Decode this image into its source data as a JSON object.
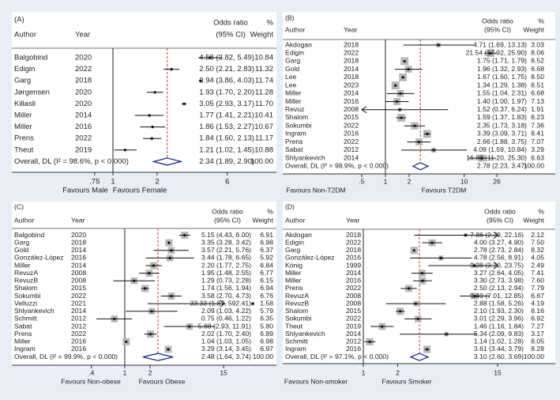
{
  "chart_data": [
    {
      "type": "forest",
      "panel_label": "(A)",
      "header": {
        "author": "Author",
        "year": "Year",
        "or_line1": "Odds ratio",
        "or_line2": "(95% CI)",
        "wt_line1": "%",
        "wt_line2": "Weight"
      },
      "xscale": "log",
      "xlim": [
        0.7,
        7.5
      ],
      "ticks": [
        {
          "v": 0.75,
          "label": ".75"
        },
        {
          "v": 1,
          "label": "1"
        },
        {
          "v": 2,
          "label": "2"
        },
        {
          "v": 6,
          "label": "6"
        }
      ],
      "favours_left": "Favours Male",
      "favours_right": "Favours Female",
      "studies": [
        {
          "author": "Balgobind",
          "year": "2020",
          "or": 4.58,
          "lo": 3.82,
          "hi": 5.49,
          "ci_text": "4.58 (3.82, 5.49)",
          "weight": "10.84"
        },
        {
          "author": "Edigin",
          "year": "2022",
          "or": 2.5,
          "lo": 2.21,
          "hi": 2.83,
          "ci_text": "2.50 (2.21, 2.83)",
          "weight": "11.32"
        },
        {
          "author": "Garg",
          "year": "2018",
          "or": 3.94,
          "lo": 3.86,
          "hi": 4.03,
          "ci_text": "3.94 (3.86, 4.03)",
          "weight": "11.74"
        },
        {
          "author": "Jørgensen",
          "year": "2020",
          "or": 1.93,
          "lo": 1.7,
          "hi": 2.2,
          "ci_text": "1.93 (1.70, 2.20)",
          "weight": "11.28"
        },
        {
          "author": "Killasli",
          "year": "2020",
          "or": 3.05,
          "lo": 2.93,
          "hi": 3.17,
          "ci_text": "3.05 (2.93, 3.17)",
          "weight": "11.70"
        },
        {
          "author": "Miller",
          "year": "2014",
          "or": 1.77,
          "lo": 1.41,
          "hi": 2.21,
          "ci_text": "1.77 (1.41, 2.21)",
          "weight": "10.41"
        },
        {
          "author": "Miller",
          "year": "2016",
          "or": 1.86,
          "lo": 1.53,
          "hi": 2.27,
          "ci_text": "1.86 (1.53, 2.27)",
          "weight": "10.67"
        },
        {
          "author": "Prens",
          "year": "2022",
          "or": 1.84,
          "lo": 1.6,
          "hi": 2.13,
          "ci_text": "1.84 (1.60, 2.13)",
          "weight": "11.17"
        },
        {
          "author": "Theut",
          "year": "2019",
          "or": 1.21,
          "lo": 1.02,
          "hi": 1.45,
          "ci_text": "1.21 (1.02, 1.45)",
          "weight": "10.88"
        }
      ],
      "overall": {
        "label": "Overall, DL (I² = 98.6%, p < 0.000)",
        "or": 2.34,
        "lo": 1.89,
        "hi": 2.9,
        "ci_text": "2.34 (1.89, 2.90)",
        "weight": "100.00"
      }
    },
    {
      "type": "forest",
      "panel_label": "(B)",
      "header": {
        "author": "Author",
        "year": "Year",
        "or_line1": "Odds ratio",
        "or_line2": "(95% CI)",
        "wt_line1": "%",
        "wt_line2": "Weight"
      },
      "xscale": "log",
      "xlim": [
        0.5,
        30
      ],
      "ticks": [
        {
          "v": 0.5,
          "label": ".5"
        },
        {
          "v": 1,
          "label": "1"
        },
        {
          "v": 2,
          "label": "2"
        },
        {
          "v": 10,
          "label": "10"
        },
        {
          "v": 26,
          "label": "26"
        }
      ],
      "favours_left": "Favours Non-T2DM",
      "favours_right": "Favours T2DM",
      "studies": [
        {
          "author": "Akdogan",
          "year": "2018",
          "or": 4.71,
          "lo": 1.69,
          "hi": 13.13,
          "ci_text": "4.71 (1.69, 13.13)",
          "weight": "3.03"
        },
        {
          "author": "Edigin",
          "year": "2022",
          "or": 21.54,
          "lo": 17.92,
          "hi": 25.9,
          "ci_text": "21.54 (17.92, 25.90)",
          "weight": "8.06"
        },
        {
          "author": "Garg",
          "year": "2018",
          "or": 1.75,
          "lo": 1.71,
          "hi": 1.79,
          "ci_text": "1.75 (1.71, 1.79)",
          "weight": "8.52"
        },
        {
          "author": "Gold",
          "year": "2014",
          "or": 1.96,
          "lo": 1.32,
          "hi": 2.93,
          "ci_text": "1.96 (1.32, 2.93)",
          "weight": "6.68"
        },
        {
          "author": "Lee",
          "year": "2018",
          "or": 1.67,
          "lo": 1.6,
          "hi": 1.75,
          "ci_text": "1.67 (1.60, 1.75)",
          "weight": "8.50"
        },
        {
          "author": "Lee",
          "year": "2023",
          "or": 1.34,
          "lo": 1.29,
          "hi": 1.38,
          "ci_text": "1.34 (1.29, 1.38)",
          "weight": "8.51"
        },
        {
          "author": "Miller",
          "year": "2014",
          "or": 1.55,
          "lo": 1.04,
          "hi": 2.31,
          "ci_text": "1.55 (1.04, 2.31)",
          "weight": "6.68"
        },
        {
          "author": "Miller",
          "year": "2016",
          "or": 1.4,
          "lo": 1.0,
          "hi": 1.97,
          "ci_text": "1.40 (1.00, 1.97)",
          "weight": "7.13"
        },
        {
          "author": "Revuz",
          "year": "2008",
          "or": 1.52,
          "lo": 0.37,
          "hi": 6.24,
          "ci_text": "1.52 (0.37, 6.24)",
          "weight": "1.91"
        },
        {
          "author": "Shalom",
          "year": "2015",
          "or": 1.59,
          "lo": 1.37,
          "hi": 1.83,
          "ci_text": "1.59 (1.37, 1.83)",
          "weight": "8.23"
        },
        {
          "author": "Sokumbi",
          "year": "2022",
          "or": 2.35,
          "lo": 1.73,
          "hi": 3.18,
          "ci_text": "2.35 (1.73, 3.18)",
          "weight": "7.36"
        },
        {
          "author": "Ingram",
          "year": "2016",
          "or": 3.39,
          "lo": 3.09,
          "hi": 3.71,
          "ci_text": "3.39 (3.09, 3.71)",
          "weight": "8.41"
        },
        {
          "author": "Prens",
          "year": "2022",
          "or": 2.66,
          "lo": 1.88,
          "hi": 3.75,
          "ci_text": "2.66 (1.88, 3.75)",
          "weight": "7.07"
        },
        {
          "author": "Sabat",
          "year": "2012",
          "or": 4.09,
          "lo": 1.59,
          "hi": 10.84,
          "ci_text": "4.09 (1.59, 10.84)",
          "weight": "3.29"
        },
        {
          "author": "Shlyankevich",
          "year": "2014",
          "or": 16.8,
          "lo": 11.2,
          "hi": 25.3,
          "ci_text": "16.80 (11.20, 25.30)",
          "weight": "6.63"
        }
      ],
      "overall": {
        "label": "Overall, DL (I² = 98.9%, p < 0.000)",
        "or": 2.78,
        "lo": 2.23,
        "hi": 3.47,
        "ci_text": "2.78 (2.23, 3.47)",
        "weight": "100.00"
      }
    },
    {
      "type": "forest",
      "panel_label": "(C)",
      "header": {
        "author": "Author",
        "year": "Year",
        "or_line1": "Odds ratio",
        "or_line2": "(95% CI)",
        "wt_line1": "%",
        "wt_line2": "Weight"
      },
      "xscale": "log",
      "xlim": [
        0.4,
        15.5
      ],
      "ticks": [
        {
          "v": 0.4,
          "label": ".4"
        },
        {
          "v": 1,
          "label": "1"
        },
        {
          "v": 2,
          "label": "2"
        },
        {
          "v": 15,
          "label": "15"
        }
      ],
      "favours_left": "Favours Non-obese",
      "favours_right": "Favours Obese",
      "studies": [
        {
          "author": "Balgobind",
          "year": "2020",
          "or": 5.15,
          "lo": 4.43,
          "hi": 6.0,
          "ci_text": "5.15 (4.43, 6.00)",
          "weight": "6.91"
        },
        {
          "author": "Garg",
          "year": "2018",
          "or": 3.35,
          "lo": 3.28,
          "hi": 3.42,
          "ci_text": "3.35 (3.28, 3.42)",
          "weight": "6.98"
        },
        {
          "author": "Gold",
          "year": "2014",
          "or": 3.57,
          "lo": 2.21,
          "hi": 5.76,
          "ci_text": "3.57 (2.21, 5.76)",
          "weight": "6.37"
        },
        {
          "author": "González-López",
          "year": "2016",
          "or": 3.44,
          "lo": 1.78,
          "hi": 6.65,
          "ci_text": "3.44 (1.78, 6.65)",
          "weight": "5.92"
        },
        {
          "author": "Miller",
          "year": "2014",
          "or": 2.2,
          "lo": 1.77,
          "hi": 2.75,
          "ci_text": "2.20 (1.77, 2.75)",
          "weight": "6.84"
        },
        {
          "author": "RevuzA",
          "year": "2008",
          "or": 1.95,
          "lo": 1.48,
          "hi": 2.55,
          "ci_text": "1.95 (1.48, 2.55)",
          "weight": "6.77"
        },
        {
          "author": "RevuzB",
          "year": "2008",
          "or": 1.29,
          "lo": 0.73,
          "hi": 2.28,
          "ci_text": "1.29 (0.73, 2.28)",
          "weight": "6.15"
        },
        {
          "author": "Shalom",
          "year": "2015",
          "or": 1.74,
          "lo": 1.56,
          "hi": 1.94,
          "ci_text": "1.74 (1.56, 1.94)",
          "weight": "6.94"
        },
        {
          "author": "Sokumbi",
          "year": "2022",
          "or": 3.58,
          "lo": 2.7,
          "hi": 4.73,
          "ci_text": "3.58 (2.70, 4.73)",
          "weight": "6.76"
        },
        {
          "author": "Velluzzi",
          "year": "2021",
          "or": 33.33,
          "lo": 1.87,
          "hi": 592.41,
          "ci_text": "33.33 (1.87, 592.41)",
          "weight": "1.58"
        },
        {
          "author": "Shlyankevich",
          "year": "2014",
          "or": 2.09,
          "lo": 1.03,
          "hi": 4.22,
          "ci_text": "2.09 (1.03, 4.22)",
          "weight": "5.79"
        },
        {
          "author": "Schmitt",
          "year": "2012",
          "or": 0.75,
          "lo": 0.46,
          "hi": 1.22,
          "ci_text": "0.75 (0.46, 1.22)",
          "weight": "6.35"
        },
        {
          "author": "Sabat",
          "year": "2012",
          "or": 5.88,
          "lo": 2.93,
          "hi": 11.91,
          "ci_text": "5.88 (2.93, 11.91)",
          "weight": "5.80"
        },
        {
          "author": "Prens",
          "year": "2022",
          "or": 2.02,
          "lo": 1.7,
          "hi": 2.4,
          "ci_text": "2.02 (1.70, 2.40)",
          "weight": "6.89"
        },
        {
          "author": "Miller",
          "year": "2016",
          "or": 1.04,
          "lo": 1.03,
          "hi": 1.05,
          "ci_text": "1.04 (1.03, 1.05)",
          "weight": "6.98"
        },
        {
          "author": "Ingram",
          "year": "2016",
          "or": 3.29,
          "lo": 3.14,
          "hi": 3.45,
          "ci_text": "3.29 (3.14, 3.45)",
          "weight": "6.97"
        }
      ],
      "overall": {
        "label": "Overall, DL (I² = 99.9%, p < 0.000)",
        "or": 2.48,
        "lo": 1.64,
        "hi": 3.74,
        "ci_text": "2.48 (1.64, 3.74)",
        "weight": "100.00"
      }
    },
    {
      "type": "forest",
      "panel_label": "(D)",
      "header": {
        "author": "Author",
        "year": "Year",
        "or_line1": "Odds ratio",
        "or_line2": "(95% CI)",
        "wt_line1": "%",
        "wt_line2": "Weight"
      },
      "xscale": "log",
      "xlim": [
        0.95,
        15.2
      ],
      "ticks": [
        {
          "v": 1,
          "label": "1"
        },
        {
          "v": 2,
          "label": "2"
        },
        {
          "v": 15,
          "label": "15"
        }
      ],
      "favours_left": "Favours Non-smoker",
      "favours_right": "Favours Smoker",
      "studies": [
        {
          "author": "Akdogan",
          "year": "2018",
          "or": 7.86,
          "lo": 2.79,
          "hi": 22.16,
          "ci_text": "7.86 (2.79, 22.16)",
          "weight": "2.12"
        },
        {
          "author": "Edigin",
          "year": "2022",
          "or": 4.0,
          "lo": 3.27,
          "hi": 4.9,
          "ci_text": "4.00 (3.27, 4.90)",
          "weight": "7.50"
        },
        {
          "author": "Garg",
          "year": "2018",
          "or": 2.78,
          "lo": 2.73,
          "hi": 2.84,
          "ci_text": "2.78 (2.73, 2.84)",
          "weight": "8.32"
        },
        {
          "author": "González-López",
          "year": "2016",
          "or": 4.78,
          "lo": 2.56,
          "hi": 8.91,
          "ci_text": "4.78 (2.56, 8.91)",
          "weight": "4.05"
        },
        {
          "author": "König",
          "year": "1999",
          "or": 9.38,
          "lo": 3.7,
          "hi": 23.75,
          "ci_text": "9.38 (3.70, 23.75)",
          "weight": "2.49"
        },
        {
          "author": "Miller",
          "year": "2014",
          "or": 3.27,
          "lo": 2.64,
          "hi": 4.05,
          "ci_text": "3.27 (2.64, 4.05)",
          "weight": "7.41"
        },
        {
          "author": "Miller",
          "year": "2016",
          "or": 3.3,
          "lo": 2.73,
          "hi": 3.98,
          "ci_text": "3.30 (2.73, 3.98)",
          "weight": "7.60"
        },
        {
          "author": "Prens",
          "year": "2022",
          "or": 2.5,
          "lo": 2.13,
          "hi": 2.94,
          "ci_text": "2.50 (2.13, 2.94)",
          "weight": "7.79"
        },
        {
          "author": "RevuzA",
          "year": "2008",
          "or": 9.49,
          "lo": 7.01,
          "hi": 12.85,
          "ci_text": "9.49 (7.01, 12.85)",
          "weight": "6.67"
        },
        {
          "author": "RevuzB",
          "year": "2008",
          "or": 2.88,
          "lo": 1.58,
          "hi": 5.26,
          "ci_text": "2.88 (1.58, 5.26)",
          "weight": "4.19"
        },
        {
          "author": "Shalom",
          "year": "2015",
          "or": 2.1,
          "lo": 1.93,
          "hi": 2.3,
          "ci_text": "2.10 (1.93, 2.30)",
          "weight": "8.16"
        },
        {
          "author": "Sokumbi",
          "year": "2022",
          "or": 3.01,
          "lo": 2.29,
          "hi": 3.96,
          "ci_text": "3.01 (2.29, 3.96)",
          "weight": "6.92"
        },
        {
          "author": "Theut",
          "year": "2019",
          "or": 1.46,
          "lo": 1.16,
          "hi": 1.84,
          "ci_text": "1.46 (1.16, 1.84)",
          "weight": "7.27"
        },
        {
          "author": "Shlyankevich",
          "year": "2014",
          "or": 5.34,
          "lo": 2.09,
          "hi": 9.83,
          "ci_text": "5.34 (2.09, 9.83)",
          "weight": "3.17"
        },
        {
          "author": "Schmitt",
          "year": "2012",
          "or": 1.14,
          "lo": 1.02,
          "hi": 1.28,
          "ci_text": "1.14 (1.02, 1.28)",
          "weight": "8.05"
        },
        {
          "author": "Ingram",
          "year": "2016",
          "or": 3.61,
          "lo": 3.44,
          "hi": 3.79,
          "ci_text": "3.61 (3.44, 3.79)",
          "weight": "8.28"
        }
      ],
      "overall": {
        "label": "Overall, DL (I² = 97.1%, p < 0.000)",
        "or": 3.1,
        "lo": 2.6,
        "hi": 3.69,
        "ci_text": "3.10 (2.60, 3.69)",
        "weight": "100.00"
      }
    }
  ],
  "colors": {
    "background": "#e8eef3",
    "panel": "#ffffff",
    "box": "#b8b8b8",
    "null_line": "#222222",
    "overall_line": "#d0393b",
    "diamond": "#1f2a8c"
  }
}
